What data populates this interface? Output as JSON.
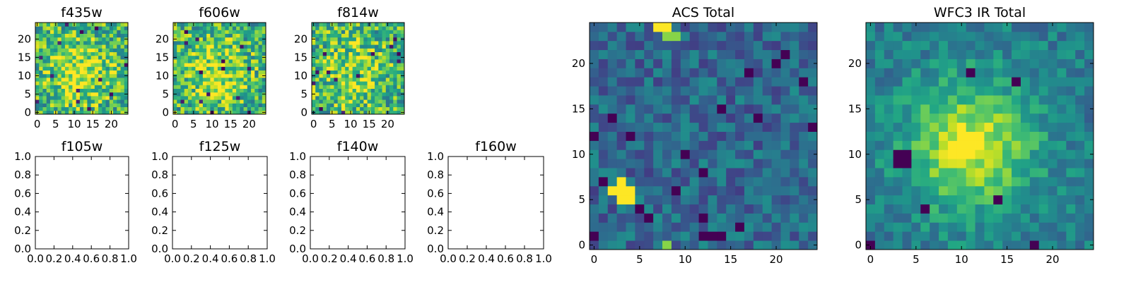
{
  "chart_data": [
    {
      "type": "heatmap",
      "title": "f435w",
      "grid_size": 25,
      "has_image": true,
      "seed": 435,
      "center_strength": 0.3,
      "xticks": [
        "0",
        "5",
        "10",
        "15",
        "20"
      ],
      "yticks": [
        "0",
        "5",
        "10",
        "15",
        "20"
      ],
      "xlim": [
        -0.5,
        24.5
      ],
      "ylim": [
        -0.5,
        24.5
      ]
    },
    {
      "type": "heatmap",
      "title": "f606w",
      "grid_size": 25,
      "has_image": true,
      "seed": 606,
      "center_strength": 0.25,
      "xticks": [
        "0",
        "5",
        "10",
        "15",
        "20"
      ],
      "yticks": [
        "0",
        "5",
        "10",
        "15",
        "20"
      ],
      "xlim": [
        -0.5,
        24.5
      ],
      "ylim": [
        -0.5,
        24.5
      ]
    },
    {
      "type": "heatmap",
      "title": "f814w",
      "grid_size": 25,
      "has_image": true,
      "seed": 814,
      "center_strength": 0.2,
      "xticks": [
        "0",
        "5",
        "10",
        "15",
        "20"
      ],
      "yticks": [
        "0",
        "5",
        "10",
        "15",
        "20"
      ],
      "xlim": [
        -0.5,
        24.5
      ],
      "ylim": [
        -0.5,
        24.5
      ]
    },
    {
      "type": "empty",
      "title": "f105w",
      "has_image": false,
      "xticks": [
        "0.0",
        "0.2",
        "0.4",
        "0.6",
        "0.8",
        "1.0"
      ],
      "yticks": [
        "0.0",
        "0.2",
        "0.4",
        "0.6",
        "0.8",
        "1.0"
      ],
      "xlim": [
        0,
        1
      ],
      "ylim": [
        0,
        1
      ]
    },
    {
      "type": "empty",
      "title": "f125w",
      "has_image": false,
      "xticks": [
        "0.0",
        "0.2",
        "0.4",
        "0.6",
        "0.8",
        "1.0"
      ],
      "yticks": [
        "0.0",
        "0.2",
        "0.4",
        "0.6",
        "0.8",
        "1.0"
      ],
      "xlim": [
        0,
        1
      ],
      "ylim": [
        0,
        1
      ]
    },
    {
      "type": "empty",
      "title": "f140w",
      "has_image": false,
      "xticks": [
        "0.0",
        "0.2",
        "0.4",
        "0.6",
        "0.8",
        "1.0"
      ],
      "yticks": [
        "0.0",
        "0.2",
        "0.4",
        "0.6",
        "0.8",
        "1.0"
      ],
      "xlim": [
        0,
        1
      ],
      "ylim": [
        0,
        1
      ]
    },
    {
      "type": "empty",
      "title": "f160w",
      "has_image": false,
      "xticks": [
        "0.0",
        "0.2",
        "0.4",
        "0.6",
        "0.8",
        "1.0"
      ],
      "yticks": [
        "0.0",
        "0.2",
        "0.4",
        "0.6",
        "0.8",
        "1.0"
      ],
      "xlim": [
        0,
        1
      ],
      "ylim": [
        0,
        1
      ]
    },
    {
      "type": "heatmap",
      "title": "ACS Total",
      "grid_size": 25,
      "has_image": true,
      "seed": 1234,
      "center_strength": 0.0,
      "xticks": [
        "0",
        "5",
        "10",
        "15",
        "20"
      ],
      "yticks": [
        "0",
        "5",
        "10",
        "15",
        "20"
      ],
      "xlim": [
        -0.5,
        24.5
      ],
      "ylim": [
        -0.5,
        24.5
      ],
      "hot_pixels": [
        [
          2,
          6
        ],
        [
          3,
          6
        ],
        [
          3,
          7
        ],
        [
          3,
          5
        ],
        [
          4,
          5
        ],
        [
          4,
          6
        ],
        [
          7,
          24
        ],
        [
          8,
          24
        ]
      ],
      "bright_pixels": [
        [
          8,
          0
        ],
        [
          8,
          23
        ],
        [
          9,
          23
        ]
      ],
      "dark_pixels": [
        [
          5,
          4
        ],
        [
          0,
          12
        ],
        [
          1,
          7
        ],
        [
          2,
          14
        ],
        [
          4,
          12
        ],
        [
          10,
          10
        ],
        [
          12,
          3
        ],
        [
          12,
          1
        ],
        [
          13,
          1
        ],
        [
          14,
          1
        ],
        [
          16,
          2
        ],
        [
          17,
          19
        ],
        [
          18,
          14
        ],
        [
          21,
          21
        ],
        [
          23,
          18
        ],
        [
          20,
          20
        ],
        [
          14,
          15
        ],
        [
          9,
          6
        ],
        [
          12,
          8
        ],
        [
          6,
          3
        ],
        [
          24,
          13
        ],
        [
          0,
          1
        ]
      ]
    },
    {
      "type": "heatmap",
      "title": "WFC3 IR Total",
      "grid_size": 25,
      "has_image": true,
      "seed": 3160,
      "center_strength": 0.85,
      "center": [
        11,
        11
      ],
      "sigma": 5.0,
      "xticks": [
        "0",
        "5",
        "10",
        "15",
        "20"
      ],
      "yticks": [
        "0",
        "5",
        "10",
        "15",
        "20"
      ],
      "xlim": [
        -0.5,
        24.5
      ],
      "ylim": [
        -0.5,
        24.5
      ],
      "hot_pixels": [
        [
          9,
          10
        ],
        [
          10,
          10
        ],
        [
          11,
          10
        ],
        [
          10,
          11
        ],
        [
          11,
          11
        ],
        [
          9,
          11
        ],
        [
          10,
          12
        ],
        [
          11,
          12
        ],
        [
          12,
          11
        ]
      ],
      "dark_pixels": [
        [
          3,
          10
        ],
        [
          4,
          10
        ],
        [
          3,
          9
        ],
        [
          4,
          9
        ],
        [
          11,
          19
        ],
        [
          18,
          0
        ],
        [
          14,
          5
        ],
        [
          6,
          4
        ],
        [
          0,
          0
        ],
        [
          16,
          18
        ]
      ]
    }
  ]
}
